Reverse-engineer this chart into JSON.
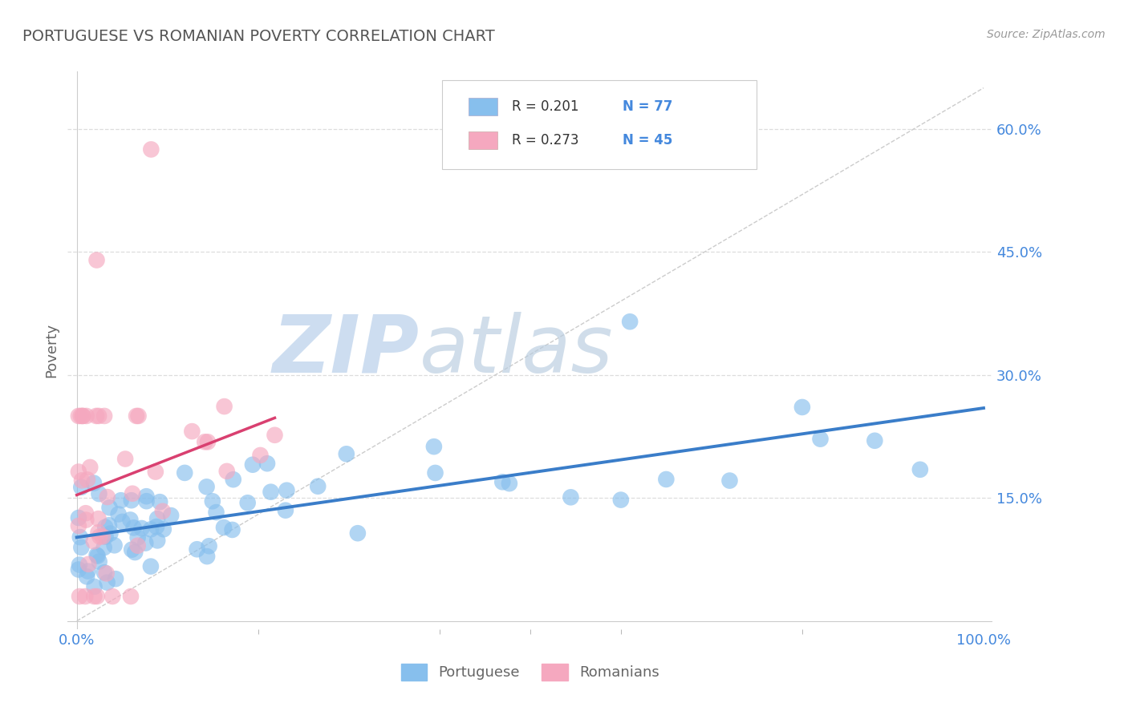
{
  "title": "PORTUGUESE VS ROMANIAN POVERTY CORRELATION CHART",
  "source_text": "Source: ZipAtlas.com",
  "ylabel": "Poverty",
  "xlim": [
    0,
    1
  ],
  "ylim": [
    0,
    0.65
  ],
  "x_tick_labels": [
    "0.0%",
    "100.0%"
  ],
  "y_tick_labels": [
    "15.0%",
    "30.0%",
    "45.0%",
    "60.0%"
  ],
  "y_tick_values": [
    0.15,
    0.3,
    0.45,
    0.6
  ],
  "portuguese_color": "#87BFED",
  "romanian_color": "#F5A8BF",
  "portuguese_line_color": "#3A7DC9",
  "romanian_line_color": "#D94070",
  "portuguese_R": 0.201,
  "portuguese_N": 77,
  "romanian_R": 0.273,
  "romanian_N": 45,
  "background_color": "#ffffff",
  "title_color": "#555555",
  "label_color": "#666666",
  "tick_color": "#4488DD",
  "watermark_zip": "ZIP",
  "watermark_atlas": "atlas",
  "watermark_color_zip": "#D0DFF0",
  "watermark_color_atlas": "#C8D8E8"
}
